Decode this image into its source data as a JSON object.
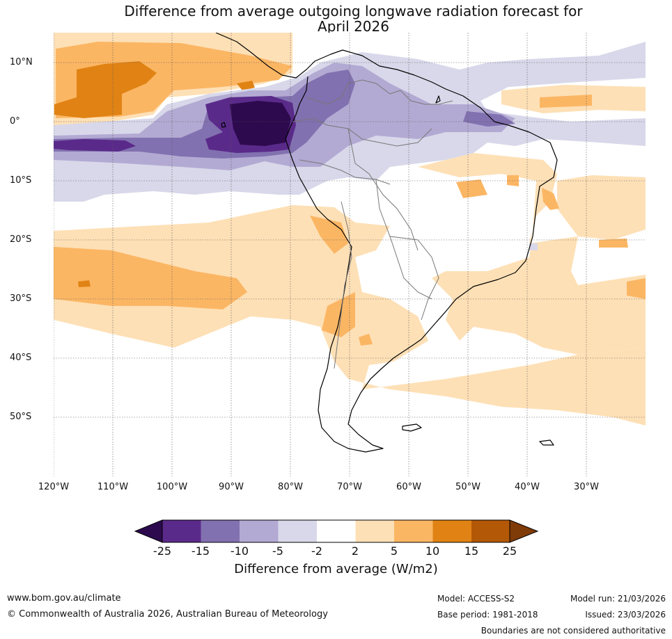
{
  "title": {
    "line1": "Difference from average outgoing longwave radiation forecast for",
    "line2": "April 2026"
  },
  "map": {
    "region": "South America and adjacent Pacific / Atlantic Oceans",
    "lat_labels": [
      "10°N",
      "0°",
      "10°S",
      "20°S",
      "30°S",
      "40°S",
      "50°S"
    ],
    "lon_labels": [
      "120°W",
      "110°W",
      "100°W",
      "90°W",
      "80°W",
      "70°W",
      "60°W",
      "50°W",
      "40°W",
      "30°W"
    ],
    "extent": {
      "lon_min": -120,
      "lon_max": -20,
      "lat_min": -60,
      "lat_max": 15
    }
  },
  "legend": {
    "ticks": [
      "-25",
      "-15",
      "-10",
      "-5",
      "-2",
      "2",
      "5",
      "10",
      "15",
      "25"
    ],
    "label": "Difference from average (W/m2)",
    "colors": {
      "below_-25": "#2d0a4e",
      "-25_-15": "#5a2a8a",
      "-15_-10": "#8271b0",
      "-10_-5": "#b3aad3",
      "-5_-2": "#d8d8ea",
      "-2_2": "#ffffff",
      "2_5": "#fee0b6",
      "5_10": "#fbb664",
      "10_15": "#e08314",
      "15_25": "#b35807",
      "above_25": "#7f3b08"
    }
  },
  "footer": {
    "website": "www.bom.gov.au/climate",
    "copyright": "© Commonwealth of Australia 2026, Australian Bureau of Meteorology",
    "model": "Model: ACCESS-S2",
    "base_period": "Base period: 1981-2018",
    "model_run": "Model run: 21/03/2026",
    "issued": "Issued: 23/03/2026",
    "disclaimer": "Boundaries are not considered authoritative"
  }
}
